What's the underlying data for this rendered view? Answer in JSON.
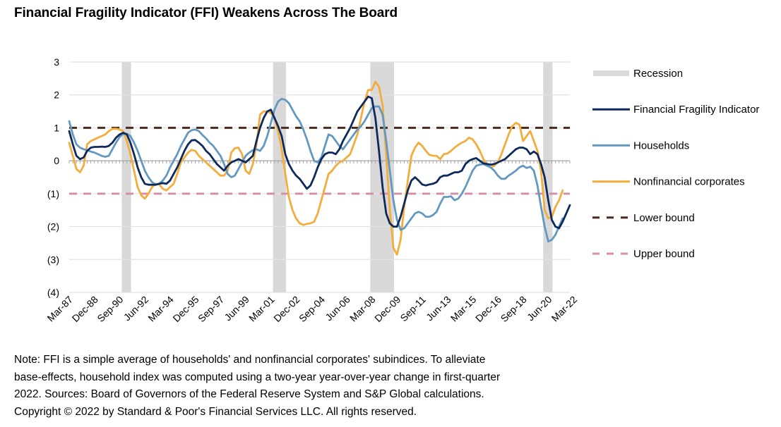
{
  "chart_data": {
    "type": "line",
    "title": "Financial Fragility Indicator (FFI) Weakens Across The Board",
    "xlabel": "",
    "ylabel": "",
    "ylim": [
      -4,
      3
    ],
    "y_ticks": [
      3,
      2,
      1,
      0,
      -1,
      -2,
      -3,
      -4
    ],
    "y_tick_labels": [
      "3",
      "2",
      "1",
      "0",
      "(1)",
      "(2)",
      "(3)",
      "(4)"
    ],
    "x_start": "Mar-87",
    "x_end": "Mar-22",
    "frequency": "quarterly",
    "x_tick_labels": [
      "Mar-87",
      "Dec-88",
      "Sep-90",
      "Jun-92",
      "Mar-94",
      "Dec-95",
      "Sep-97",
      "Jun-99",
      "Mar-01",
      "Dec-02",
      "Sep-04",
      "Jun-06",
      "Mar-08",
      "Dec-09",
      "Sep-11",
      "Jun-13",
      "Mar-15",
      "Dec-16",
      "Sep-18",
      "Jun-20",
      "Mar-22"
    ],
    "x_tick_every_quarters": 7,
    "grid": true,
    "legend_position": "right",
    "recessions": [
      {
        "start_q": 14,
        "end_q": 16
      },
      {
        "start_q": 56,
        "end_q": 59
      },
      {
        "start_q": 83,
        "end_q": 89
      },
      {
        "start_q": 131,
        "end_q": 133
      }
    ],
    "reference_lines": [
      {
        "name": "Lower bound",
        "value": 1,
        "color": "#4a2a1a"
      },
      {
        "name": "Upper bound",
        "value": -1,
        "color": "#d68fa8"
      }
    ],
    "series": [
      {
        "name": "Financial Fragility Indicator",
        "color": "#0e2a5c",
        "values": [
          0.9,
          0.5,
          0.15,
          0.05,
          0.1,
          0.3,
          0.4,
          0.42,
          0.42,
          0.43,
          0.42,
          0.45,
          0.55,
          0.7,
          0.8,
          0.85,
          0.8,
          0.55,
          0.2,
          -0.2,
          -0.5,
          -0.7,
          -0.73,
          -0.73,
          -0.73,
          -0.7,
          -0.68,
          -0.7,
          -0.6,
          -0.4,
          -0.2,
          0.05,
          0.3,
          0.5,
          0.62,
          0.63,
          0.55,
          0.45,
          0.3,
          0.2,
          0.05,
          -0.1,
          -0.2,
          -0.3,
          -0.15,
          -0.05,
          0.0,
          0.05,
          0.0,
          -0.05,
          0.05,
          0.15,
          0.6,
          1.0,
          1.3,
          1.5,
          1.55,
          1.3,
          1.05,
          0.75,
          0.2,
          -0.1,
          -0.3,
          -0.45,
          -0.55,
          -0.7,
          -0.85,
          -0.75,
          -0.5,
          -0.2,
          0.05,
          0.2,
          0.25,
          0.25,
          0.2,
          0.35,
          0.6,
          0.8,
          1.0,
          1.25,
          1.5,
          1.65,
          1.8,
          1.95,
          1.9,
          1.3,
          0.3,
          -0.8,
          -1.6,
          -1.9,
          -2.0,
          -2.0,
          -1.7,
          -1.3,
          -0.9,
          -0.6,
          -0.5,
          -0.6,
          -0.72,
          -0.75,
          -0.72,
          -0.7,
          -0.65,
          -0.5,
          -0.45,
          -0.45,
          -0.4,
          -0.35,
          -0.35,
          -0.3,
          -0.1,
          0.0,
          0.05,
          0.08,
          0.0,
          -0.08,
          -0.1,
          -0.12,
          -0.1,
          -0.05,
          0.0,
          0.05,
          0.15,
          0.25,
          0.35,
          0.4,
          0.4,
          0.35,
          0.2,
          0.28,
          0.2,
          -0.1,
          -0.5,
          -1.2,
          -1.8,
          -2.0,
          -2.05,
          -1.85,
          -1.6,
          -1.35
        ]
      },
      {
        "name": "Households",
        "color": "#6399c0",
        "values": [
          1.2,
          0.8,
          0.5,
          0.4,
          0.35,
          0.32,
          0.28,
          0.25,
          0.2,
          0.15,
          0.12,
          0.15,
          0.35,
          0.55,
          0.72,
          0.82,
          0.82,
          0.75,
          0.55,
          0.3,
          0.0,
          -0.3,
          -0.5,
          -0.65,
          -0.72,
          -0.7,
          -0.6,
          -0.45,
          -0.2,
          0.0,
          0.2,
          0.45,
          0.65,
          0.85,
          0.93,
          0.95,
          0.9,
          0.78,
          0.68,
          0.55,
          0.45,
          0.3,
          0.15,
          -0.1,
          -0.4,
          -0.5,
          -0.45,
          -0.25,
          -0.05,
          0.15,
          0.25,
          0.32,
          0.35,
          0.3,
          0.45,
          0.75,
          1.15,
          1.55,
          1.8,
          1.88,
          1.85,
          1.75,
          1.55,
          1.35,
          1.2,
          0.95,
          0.65,
          0.3,
          0.0,
          -0.05,
          0.1,
          0.45,
          0.8,
          0.75,
          0.6,
          0.45,
          0.35,
          0.5,
          0.65,
          0.8,
          0.95,
          1.05,
          1.2,
          1.4,
          1.6,
          1.65,
          1.65,
          1.4,
          0.6,
          -0.3,
          -1.2,
          -1.8,
          -2.1,
          -2.05,
          -1.9,
          -1.75,
          -1.6,
          -1.55,
          -1.6,
          -1.7,
          -1.7,
          -1.65,
          -1.55,
          -1.3,
          -1.1,
          -1.1,
          -1.08,
          -1.2,
          -1.15,
          -1.0,
          -0.8,
          -0.55,
          -0.3,
          -0.15,
          -0.12,
          -0.1,
          -0.15,
          -0.2,
          -0.3,
          -0.45,
          -0.55,
          -0.55,
          -0.45,
          -0.38,
          -0.3,
          -0.2,
          -0.15,
          -0.22,
          -0.18,
          -0.3,
          -0.75,
          -1.4,
          -2.0,
          -2.45,
          -2.4,
          -2.25,
          -2.0,
          -1.75
        ]
      },
      {
        "name": "Nonfinancial corporates",
        "color": "#f4ad3d",
        "values": [
          0.55,
          0.15,
          -0.25,
          -0.35,
          -0.15,
          0.5,
          0.6,
          0.65,
          0.7,
          0.75,
          0.8,
          0.9,
          0.97,
          0.97,
          0.95,
          0.9,
          0.6,
          0.2,
          -0.3,
          -0.8,
          -1.05,
          -1.15,
          -1.0,
          -0.8,
          -0.7,
          -0.72,
          -0.85,
          -0.9,
          -0.8,
          -0.7,
          -0.4,
          -0.05,
          0.1,
          0.25,
          0.33,
          0.3,
          0.15,
          0.05,
          -0.05,
          -0.15,
          -0.25,
          -0.35,
          -0.45,
          -0.45,
          -0.3,
          0.25,
          0.38,
          0.4,
          0.2,
          -0.3,
          -0.4,
          -0.1,
          0.5,
          1.4,
          1.5,
          1.5,
          1.45,
          1.3,
          0.9,
          0.35,
          -0.4,
          -1.1,
          -1.5,
          -1.75,
          -1.9,
          -1.95,
          -1.92,
          -1.9,
          -1.85,
          -1.6,
          -1.2,
          -0.8,
          -0.4,
          -0.3,
          -0.15,
          -0.05,
          0.0,
          0.1,
          0.2,
          0.5,
          0.8,
          1.3,
          1.8,
          2.15,
          2.15,
          2.4,
          2.25,
          1.7,
          0.2,
          -1.5,
          -2.65,
          -2.85,
          -2.4,
          -1.4,
          -0.6,
          0.15,
          0.4,
          0.55,
          0.45,
          0.3,
          0.18,
          0.15,
          0.15,
          0.05,
          0.2,
          0.22,
          0.3,
          0.4,
          0.48,
          0.55,
          0.6,
          0.7,
          0.65,
          0.5,
          0.3,
          0.05,
          -0.15,
          -0.2,
          -0.15,
          -0.05,
          0.2,
          0.5,
          0.8,
          1.05,
          1.15,
          1.1,
          0.6,
          0.75,
          0.9,
          0.6,
          0.3,
          -0.3,
          -1.5,
          -1.75,
          -1.7,
          -1.4,
          -1.2,
          -0.9
        ]
      }
    ]
  },
  "legend": {
    "items": [
      {
        "label": "Recession",
        "kind": "band",
        "color": "#d9d9d9"
      },
      {
        "label": "Financial Fragility Indicator",
        "kind": "line",
        "color": "#0e2a5c"
      },
      {
        "label": "Households",
        "kind": "line",
        "color": "#6399c0"
      },
      {
        "label": "Nonfinancial corporates",
        "kind": "line",
        "color": "#f4ad3d"
      },
      {
        "label": "Lower bound",
        "kind": "dashed",
        "color": "#4a2a1a"
      },
      {
        "label": "Upper bound",
        "kind": "dashed",
        "color": "#d68fa8"
      }
    ]
  },
  "note": {
    "lines": [
      "Note: FFI is a simple average of households' and nonfinancial corporates' subindices. To alleviate",
      "base-effects, household index was computed using a two-year year-over-year change in first-quarter",
      "2022. Sources: Board of Governors of the Federal Reserve System and S&P Global calculations.",
      "Copyright © 2022 by Standard & Poor's Financial Services LLC. All rights reserved."
    ]
  }
}
